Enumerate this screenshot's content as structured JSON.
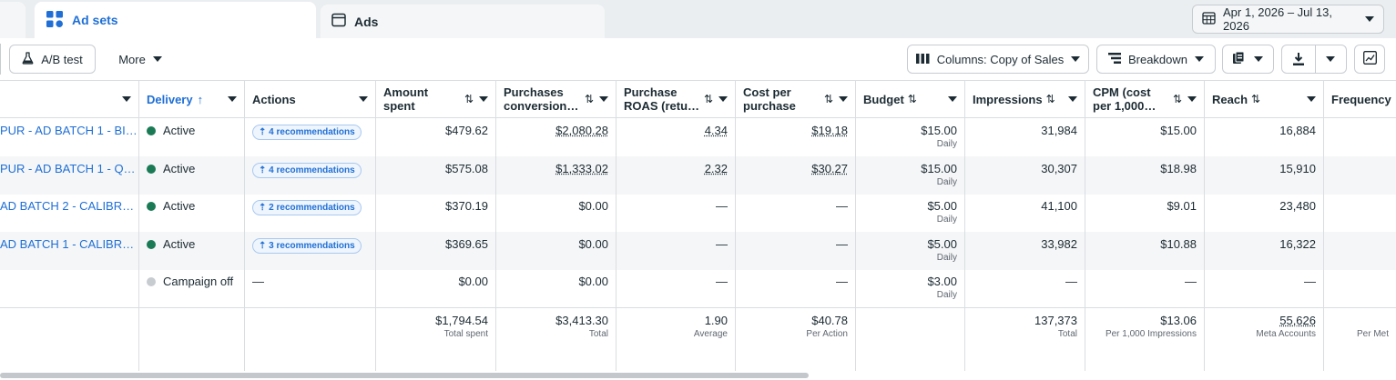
{
  "tabs": [
    {
      "label": "Ad sets",
      "icon": "grid-icon"
    },
    {
      "label": "Ads",
      "icon": "window-icon"
    }
  ],
  "date_range": "Apr 1, 2026 – Jul 13, 2026",
  "toolbar": {
    "ab_test": "A/B test",
    "more": "More",
    "columns": "Columns: Copy of Sales",
    "breakdown": "Breakdown"
  },
  "headers": {
    "name": "",
    "delivery": "Delivery",
    "actions": "Actions",
    "amount_spent": "Amount spent",
    "purchases": "Purchases conversion…",
    "roas": "Purchase ROAS (retu…",
    "cpp": "Cost per purchase",
    "budget": "Budget",
    "impressions": "Impressions",
    "cpm": "CPM (cost per 1,000…",
    "reach": "Reach",
    "frequency": "Frequency"
  },
  "rows": [
    {
      "name": "PUR - AD BATCH 1 - BI…",
      "delivery": "Active",
      "actions": "4 recommendations",
      "amount_spent": "$479.62",
      "purchases": "$2,080.28",
      "roas": "4.34",
      "cpp": "$19.18",
      "budget": "$15.00",
      "budget_type": "Daily",
      "impressions": "31,984",
      "cpm": "$15.00",
      "reach": "16,884"
    },
    {
      "name": "PUR - AD BATCH 1 - Q…",
      "delivery": "Active",
      "actions": "4 recommendations",
      "amount_spent": "$575.08",
      "purchases": "$1,333.02",
      "roas": "2.32",
      "cpp": "$30.27",
      "budget": "$15.00",
      "budget_type": "Daily",
      "impressions": "30,307",
      "cpm": "$18.98",
      "reach": "15,910"
    },
    {
      "name": "AD BATCH 2 - CALIBR…",
      "delivery": "Active",
      "actions": "2 recommendations",
      "amount_spent": "$370.19",
      "purchases": "$0.00",
      "roas": "—",
      "cpp": "—",
      "budget": "$5.00",
      "budget_type": "Daily",
      "impressions": "41,100",
      "cpm": "$9.01",
      "reach": "23,480"
    },
    {
      "name": "AD BATCH 1 - CALIBR…",
      "delivery": "Active",
      "actions": "3 recommendations",
      "amount_spent": "$369.65",
      "purchases": "$0.00",
      "roas": "—",
      "cpp": "—",
      "budget": "$5.00",
      "budget_type": "Daily",
      "impressions": "33,982",
      "cpm": "$10.88",
      "reach": "16,322"
    },
    {
      "name": "",
      "delivery": "Campaign off",
      "actions": "—",
      "amount_spent": "$0.00",
      "purchases": "$0.00",
      "roas": "—",
      "cpp": "—",
      "budget": "$3.00",
      "budget_type": "Daily",
      "impressions": "—",
      "cpm": "—",
      "reach": "—"
    }
  ],
  "totals": {
    "amount_spent": "$1,794.54",
    "amount_spent_label": "Total spent",
    "purchases": "$3,413.30",
    "purchases_label": "Total",
    "roas": "1.90",
    "roas_label": "Average",
    "cpp": "$40.78",
    "cpp_label": "Per Action",
    "impressions": "137,373",
    "impressions_label": "Total",
    "cpm": "$13.06",
    "cpm_label": "Per 1,000 Impressions",
    "reach": "55,626",
    "reach_label": "Meta Accounts",
    "frequency_label": "Per Met"
  },
  "colors": {
    "link": "#1f6fd6",
    "active_dot": "#1a7a55",
    "off_dot": "#c7ccd1"
  }
}
